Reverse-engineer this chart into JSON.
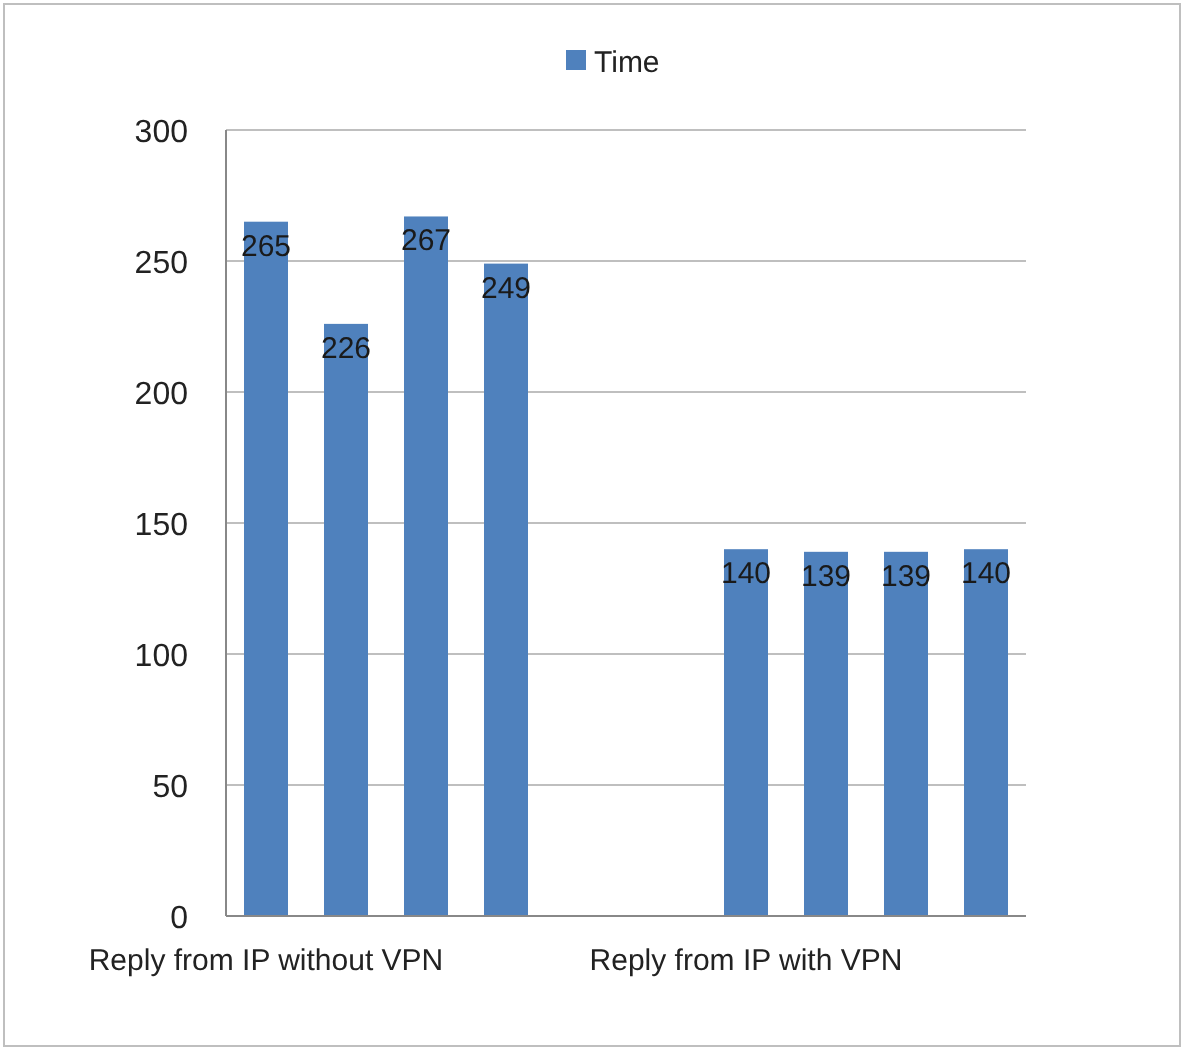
{
  "chart_data": {
    "type": "bar",
    "categories": [
      "Reply from IP without VPN",
      null,
      null,
      null,
      null,
      null,
      "Reply from IP with VPN",
      null,
      null,
      null
    ],
    "series": [
      {
        "name": "Time",
        "color": "#4f81bd",
        "values": [
          265,
          226,
          267,
          249,
          null,
          null,
          140,
          139,
          139,
          140
        ]
      }
    ],
    "ylim": [
      0,
      300
    ],
    "yticks": [
      0,
      50,
      100,
      150,
      200,
      250,
      300
    ],
    "grid": "y",
    "legend": "top",
    "data_labels": true
  }
}
